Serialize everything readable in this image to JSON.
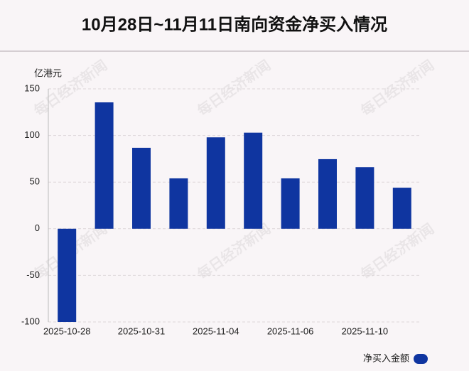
{
  "chart_data": {
    "type": "bar",
    "title": "10月28日~11月11日南向资金净买入情况",
    "y_label": "亿港元",
    "watermark": "每日经济新闻",
    "categories": [
      "2025-10-28",
      null,
      "2025-10-31",
      null,
      "2025-11-04",
      null,
      "2025-11-06",
      null,
      "2025-11-10",
      null
    ],
    "series": [
      {
        "name": "净买入金额",
        "color": "#0f35a0",
        "values": [
          -100,
          135.5,
          86.8,
          54,
          98,
          103,
          54,
          74.6,
          66,
          44
        ]
      }
    ],
    "ylim": [
      -100,
      150
    ],
    "yticks": [
      -100,
      -50,
      0,
      50,
      100,
      150
    ],
    "grid": true,
    "legend": "bottom-right"
  }
}
